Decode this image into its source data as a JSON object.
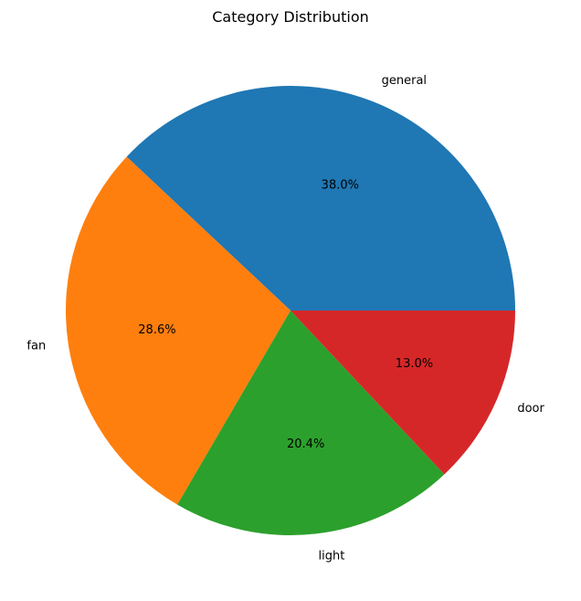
{
  "chart_data": {
    "type": "pie",
    "title": "Category Distribution",
    "categories": [
      "general",
      "fan",
      "light",
      "door"
    ],
    "values": [
      38.0,
      28.6,
      20.4,
      13.0
    ],
    "value_labels": [
      "38.0%",
      "28.6%",
      "20.4%",
      "13.0%"
    ],
    "colors": [
      "#1f77b4",
      "#ff7f0e",
      "#2ca02c",
      "#d62728"
    ],
    "start_angle_deg": 0,
    "direction": "counterclockwise",
    "legend": "none"
  }
}
